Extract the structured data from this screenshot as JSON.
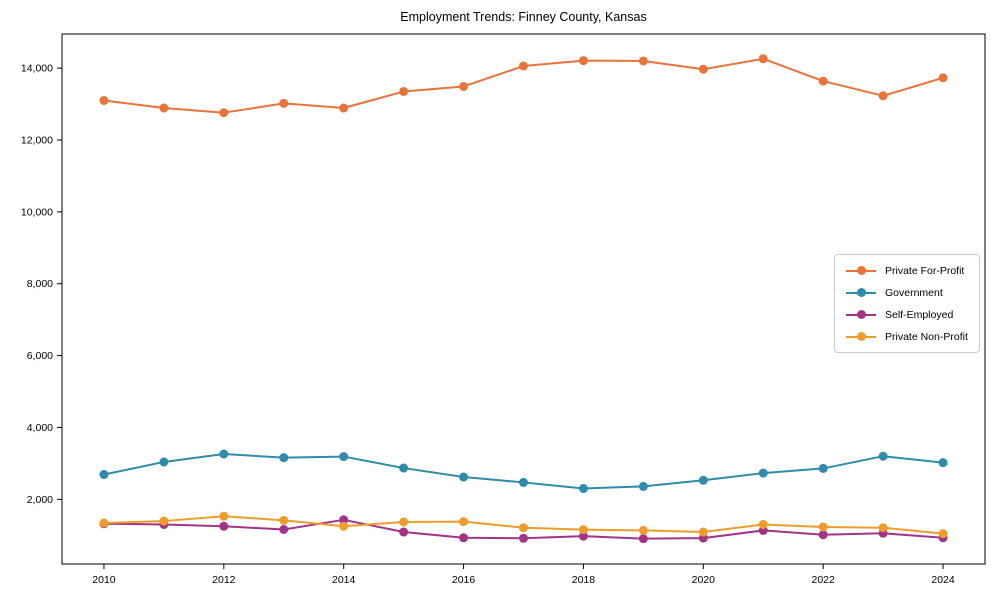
{
  "chart_data": {
    "type": "line",
    "title": "Employment Trends: Finney County, Kansas",
    "xlabel": "",
    "ylabel": "",
    "x": [
      2010,
      2011,
      2012,
      2013,
      2014,
      2015,
      2016,
      2017,
      2018,
      2019,
      2020,
      2021,
      2022,
      2023,
      2024
    ],
    "series": [
      {
        "name": "Private For-Profit",
        "color": "#e8743b",
        "values": [
          13100,
          12890,
          12760,
          13020,
          12890,
          13350,
          13490,
          14060,
          14210,
          14200,
          13970,
          14260,
          13640,
          13230,
          13730
        ]
      },
      {
        "name": "Government",
        "color": "#2e8bab",
        "values": [
          2690,
          3040,
          3260,
          3160,
          3190,
          2870,
          2620,
          2470,
          2300,
          2360,
          2530,
          2730,
          2860,
          3200,
          3020
        ]
      },
      {
        "name": "Self-Employed",
        "color": "#a23487",
        "values": [
          1320,
          1300,
          1250,
          1160,
          1430,
          1090,
          930,
          915,
          975,
          905,
          920,
          1135,
          1015,
          1055,
          930
        ]
      },
      {
        "name": "Private Non-Profit",
        "color": "#f09c2c",
        "values": [
          1340,
          1395,
          1530,
          1415,
          1250,
          1370,
          1380,
          1210,
          1155,
          1135,
          1090,
          1300,
          1230,
          1210,
          1045
        ]
      }
    ],
    "xlim": [
      2009.3,
      2024.7
    ],
    "ylim": [
      200,
      14950
    ],
    "x_ticks": [
      2010,
      2012,
      2014,
      2016,
      2018,
      2020,
      2022,
      2024
    ],
    "y_ticks": [
      2000,
      4000,
      6000,
      8000,
      10000,
      12000,
      14000
    ],
    "y_tick_labels": [
      "2,000",
      "4,000",
      "6,000",
      "8,000",
      "10,000",
      "12,000",
      "14,000"
    ],
    "grid": false,
    "legend_position": "center-right",
    "marker": "circle",
    "background_color": "#ffffff",
    "spine_color": "#000000"
  }
}
